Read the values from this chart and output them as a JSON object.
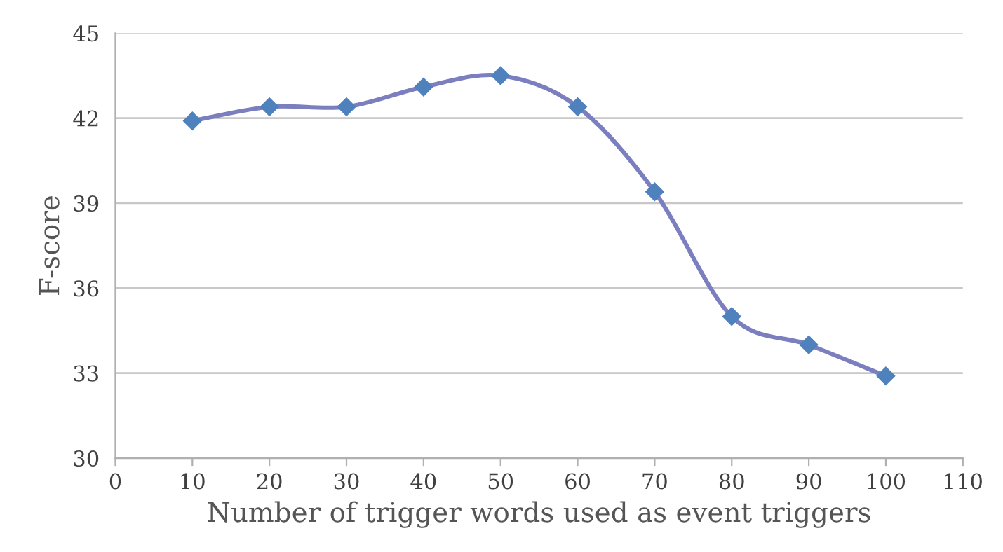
{
  "chart_data": {
    "type": "line",
    "xlabel": "Number of trigger words used as event triggers",
    "ylabel": "F-score",
    "x": [
      10,
      20,
      30,
      40,
      50,
      60,
      70,
      80,
      90,
      100
    ],
    "series": [
      {
        "color": "#4f81bd",
        "values": [
          41.9,
          42.4,
          42.4,
          43.1,
          43.5,
          42.4,
          39.4,
          35.0,
          34.0,
          32.9
        ]
      }
    ],
    "xlim": [
      0,
      110
    ],
    "xticks": [
      0,
      10,
      20,
      30,
      40,
      50,
      60,
      70,
      80,
      90,
      100,
      110
    ],
    "ylim": [
      30,
      45
    ],
    "yticks": [
      30,
      33,
      36,
      39,
      42,
      45
    ],
    "grid": "y",
    "marker": "diamond",
    "line_style": "solid"
  }
}
